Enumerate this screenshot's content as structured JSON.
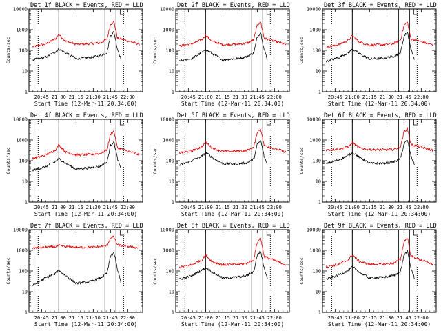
{
  "chart_data": {
    "type": "line",
    "y_scale": "log",
    "ylim": [
      1,
      10000
    ],
    "ylabel": "Counts/sec",
    "xlabel": "Start Time (12-Mar-11 20:34:00)",
    "xlim": [
      20.5667,
      22.2167
    ],
    "x_tick_labels": [
      "20:45",
      "21:00",
      "21:15",
      "21:30",
      "21:45",
      "22:00"
    ],
    "x_tick_values": [
      20.75,
      21.0,
      21.25,
      21.5,
      21.75,
      22.0
    ],
    "y_tick_labels": [
      "1",
      "10",
      "100",
      "1000",
      "10000"
    ],
    "y_tick_values": [
      1,
      10,
      100,
      1000,
      10000
    ],
    "series_colors": {
      "events": "#000000",
      "lld": "#e00000"
    },
    "panels": [
      {
        "title": "Det 1f BLACK = Events, RED = LLD",
        "series": [
          {
            "name": "Events",
            "color": "#000000",
            "x": [
              20.62,
              20.8,
              20.95,
              21.0,
              21.1,
              21.25,
              21.45,
              21.6,
              21.7,
              21.75,
              21.8,
              21.85,
              21.9
            ],
            "values": [
              35,
              45,
              85,
              120,
              75,
              40,
              45,
              55,
              80,
              500,
              800,
              120,
              40
            ]
          },
          {
            "name": "LLD",
            "color": "#e00000",
            "x": [
              20.62,
              20.8,
              20.95,
              21.0,
              21.1,
              21.25,
              21.45,
              21.6,
              21.7,
              21.75,
              21.8,
              21.85,
              22.17
            ],
            "values": [
              150,
              200,
              350,
              600,
              280,
              200,
              210,
              230,
              350,
              1800,
              2500,
              400,
              200
            ]
          }
        ],
        "vlines_solid": [
          21.0,
          21.67,
          21.83
        ],
        "vlines_dotted": [
          20.7,
          21.94
        ]
      },
      {
        "title": "Det 2f BLACK = Events, RED = LLD",
        "series": [
          {
            "name": "Events",
            "color": "#000000",
            "x": [
              20.62,
              20.8,
              20.95,
              21.0,
              21.1,
              21.25,
              21.45,
              21.6,
              21.7,
              21.75,
              21.8,
              21.85,
              21.9
            ],
            "values": [
              30,
              40,
              80,
              110,
              70,
              35,
              40,
              50,
              75,
              450,
              750,
              110,
              35
            ]
          },
          {
            "name": "LLD",
            "color": "#e00000",
            "x": [
              20.62,
              20.8,
              20.95,
              21.0,
              21.1,
              21.25,
              21.45,
              21.6,
              21.7,
              21.75,
              21.8,
              21.85,
              22.17
            ],
            "values": [
              160,
              210,
              330,
              550,
              270,
              190,
              200,
              220,
              330,
              1700,
              2400,
              380,
              190
            ]
          }
        ],
        "vlines_solid": [
          21.0,
          21.67,
          21.83
        ],
        "vlines_dotted": [
          20.7,
          21.94
        ]
      },
      {
        "title": "Det 3f BLACK = Events, RED = LLD",
        "series": [
          {
            "name": "Events",
            "color": "#000000",
            "x": [
              20.62,
              20.8,
              20.95,
              21.0,
              21.1,
              21.25,
              21.45,
              21.6,
              21.7,
              21.75,
              21.8,
              21.85,
              21.9
            ],
            "values": [
              30,
              45,
              80,
              115,
              70,
              38,
              42,
              52,
              78,
              480,
              780,
              115,
              38
            ]
          },
          {
            "name": "LLD",
            "color": "#e00000",
            "x": [
              20.62,
              20.8,
              20.95,
              21.0,
              21.1,
              21.25,
              21.45,
              21.6,
              21.7,
              21.75,
              21.8,
              21.85,
              22.17
            ],
            "values": [
              140,
              190,
              320,
              520,
              260,
              180,
              190,
              210,
              320,
              1600,
              2300,
              360,
              180
            ]
          }
        ],
        "vlines_solid": [
          21.0,
          21.67,
          21.83
        ],
        "vlines_dotted": [
          20.7,
          21.94
        ]
      },
      {
        "title": "Det 4f BLACK = Events, RED = LLD",
        "series": [
          {
            "name": "Events",
            "color": "#000000",
            "x": [
              20.62,
              20.8,
              20.95,
              21.0,
              21.1,
              21.25,
              21.45,
              21.6,
              21.7,
              21.75,
              21.8,
              21.85,
              21.9
            ],
            "values": [
              35,
              50,
              90,
              125,
              75,
              40,
              45,
              55,
              85,
              550,
              850,
              130,
              40
            ]
          },
          {
            "name": "LLD",
            "color": "#e00000",
            "x": [
              20.62,
              20.8,
              20.95,
              21.0,
              21.1,
              21.25,
              21.45,
              21.6,
              21.7,
              21.75,
              21.8,
              21.85,
              22.17
            ],
            "values": [
              130,
              180,
              330,
              580,
              260,
              190,
              200,
              220,
              340,
              1900,
              2700,
              420,
              190
            ]
          }
        ],
        "vlines_solid": [
          21.0,
          21.67,
          21.83
        ],
        "vlines_dotted": [
          20.7,
          21.94
        ]
      },
      {
        "title": "Det 5f BLACK = Events, RED = LLD",
        "series": [
          {
            "name": "Events",
            "color": "#000000",
            "x": [
              20.62,
              20.8,
              20.95,
              21.0,
              21.1,
              21.25,
              21.45,
              21.6,
              21.7,
              21.75,
              21.8,
              21.85,
              21.9
            ],
            "values": [
              60,
              100,
              170,
              250,
              140,
              70,
              70,
              80,
              120,
              600,
              950,
              160,
              60
            ]
          },
          {
            "name": "LLD",
            "color": "#e00000",
            "x": [
              20.62,
              20.8,
              20.95,
              21.0,
              21.1,
              21.25,
              21.45,
              21.6,
              21.7,
              21.75,
              21.8,
              21.85,
              22.17
            ],
            "values": [
              240,
              300,
              480,
              800,
              400,
              280,
              290,
              310,
              450,
              2400,
              3500,
              550,
              260
            ]
          }
        ],
        "vlines_solid": [
          21.0,
          21.67,
          21.83
        ],
        "vlines_dotted": [
          20.7,
          21.94
        ]
      },
      {
        "title": "Det 6f BLACK = Events, RED = LLD",
        "series": [
          {
            "name": "Events",
            "color": "#000000",
            "x": [
              20.62,
              20.8,
              20.95,
              21.0,
              21.1,
              21.25,
              21.45,
              21.6,
              21.7,
              21.75,
              21.8,
              21.85,
              21.9
            ],
            "values": [
              70,
              110,
              180,
              260,
              150,
              75,
              75,
              85,
              130,
              650,
              1000,
              170,
              65
            ]
          },
          {
            "name": "LLD",
            "color": "#e00000",
            "x": [
              20.62,
              20.8,
              20.95,
              21.0,
              21.1,
              21.25,
              21.45,
              21.6,
              21.7,
              21.75,
              21.8,
              21.85,
              22.17
            ],
            "values": [
              330,
              360,
              480,
              750,
              420,
              340,
              340,
              350,
              480,
              2500,
              3600,
              600,
              320
            ]
          }
        ],
        "vlines_solid": [
          21.0,
          21.67,
          21.83
        ],
        "vlines_dotted": [
          20.7,
          21.94
        ]
      },
      {
        "title": "Det 7f BLACK = Events, RED = LLD",
        "series": [
          {
            "name": "Events",
            "color": "#000000",
            "x": [
              20.62,
              20.8,
              20.95,
              21.0,
              21.1,
              21.25,
              21.45,
              21.6,
              21.7,
              21.75,
              21.8,
              21.85,
              21.9
            ],
            "values": [
              20,
              45,
              75,
              110,
              60,
              25,
              30,
              45,
              80,
              500,
              800,
              120,
              30
            ]
          },
          {
            "name": "LLD",
            "color": "#e00000",
            "x": [
              20.62,
              20.8,
              20.95,
              21.0,
              21.1,
              21.25,
              21.45,
              21.6,
              21.7,
              21.75,
              21.8,
              21.85,
              22.17
            ],
            "values": [
              1300,
              1400,
              1500,
              1700,
              1500,
              1400,
              1400,
              1500,
              1700,
              4000,
              4500,
              1800,
              1300
            ]
          }
        ],
        "vlines_solid": [
          21.0,
          21.67,
          21.83
        ],
        "vlines_dotted": [
          20.7,
          21.94
        ]
      },
      {
        "title": "Det 8f BLACK = Events, RED = LLD",
        "series": [
          {
            "name": "Events",
            "color": "#000000",
            "x": [
              20.62,
              20.8,
              20.95,
              21.0,
              21.1,
              21.25,
              21.45,
              21.6,
              21.7,
              21.75,
              21.8,
              21.85,
              21.9
            ],
            "values": [
              40,
              60,
              110,
              150,
              90,
              45,
              50,
              60,
              95,
              600,
              900,
              140,
              45
            ]
          },
          {
            "name": "LLD",
            "color": "#e00000",
            "x": [
              20.62,
              20.8,
              20.95,
              21.0,
              21.1,
              21.25,
              21.45,
              21.6,
              21.7,
              21.75,
              21.8,
              21.85,
              22.17
            ],
            "values": [
              150,
              200,
              350,
              600,
              280,
              200,
              210,
              230,
              360,
              2500,
              4000,
              500,
              200
            ]
          }
        ],
        "vlines_solid": [
          21.0,
          21.67,
          21.83
        ],
        "vlines_dotted": [
          20.7,
          21.94
        ]
      },
      {
        "title": "Det 9f BLACK = Events, RED = LLD",
        "series": [
          {
            "name": "Events",
            "color": "#000000",
            "x": [
              20.62,
              20.8,
              20.95,
              21.0,
              21.1,
              21.25,
              21.45,
              21.6,
              21.7,
              21.75,
              21.8,
              21.85,
              21.9
            ],
            "values": [
              40,
              65,
              110,
              160,
              90,
              45,
              50,
              60,
              95,
              600,
              900,
              140,
              45
            ]
          },
          {
            "name": "LLD",
            "color": "#e00000",
            "x": [
              20.62,
              20.8,
              20.95,
              21.0,
              21.1,
              21.25,
              21.45,
              21.6,
              21.7,
              21.75,
              21.8,
              21.85,
              22.17
            ],
            "values": [
              160,
              210,
              360,
              620,
              290,
              210,
              220,
              240,
              370,
              2600,
              4200,
              520,
              210
            ]
          }
        ],
        "vlines_solid": [
          21.0,
          21.67,
          21.83
        ],
        "vlines_dotted": [
          20.7,
          21.94
        ]
      }
    ]
  }
}
